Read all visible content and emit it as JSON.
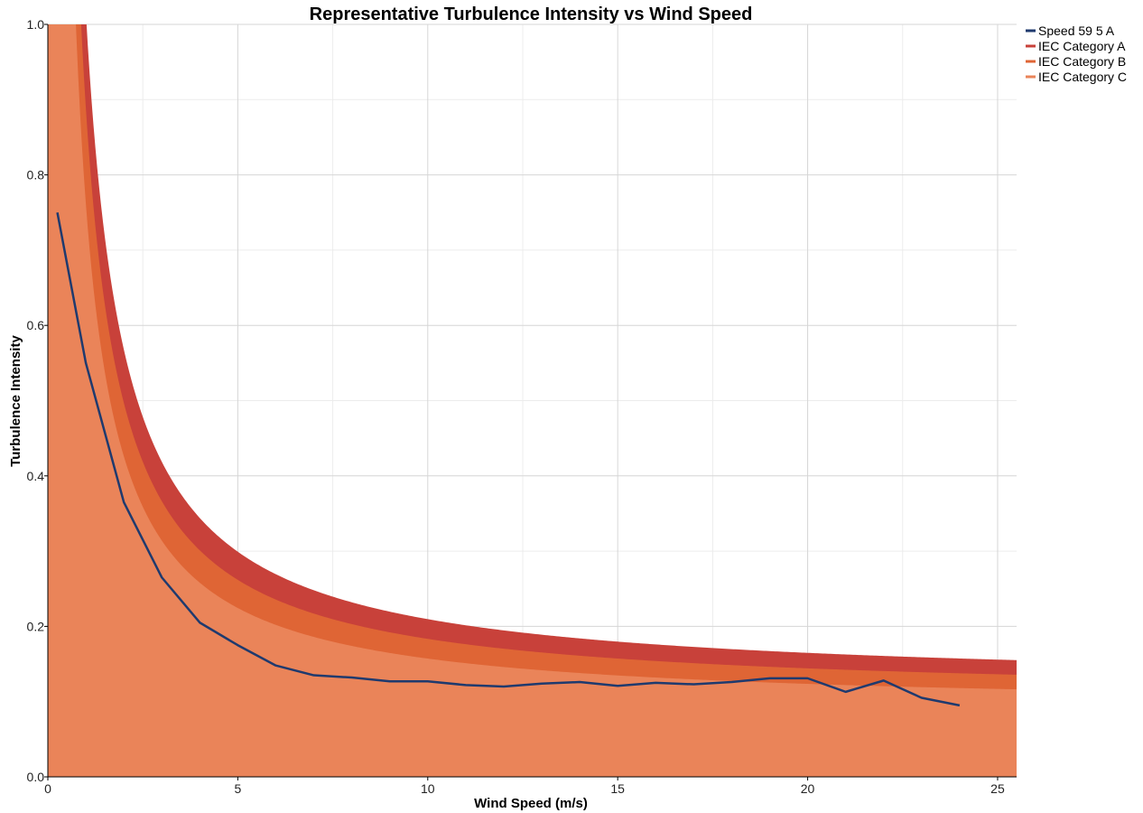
{
  "chart_data": {
    "type": "line",
    "title": "Representative Turbulence Intensity vs Wind Speed",
    "xlabel": "Wind Speed (m/s)",
    "ylabel": "Turbulence Intensity",
    "xlim": [
      0,
      25.5
    ],
    "ylim": [
      0,
      1.0
    ],
    "x_ticks": [
      0,
      5,
      10,
      15,
      20,
      25
    ],
    "x_tick_labels": [
      "0",
      "5",
      "10",
      "15",
      "20",
      "25"
    ],
    "y_ticks": [
      0.0,
      0.2,
      0.4,
      0.6,
      0.8,
      1.0
    ],
    "y_tick_labels": [
      "0.0",
      "0.2",
      "0.4",
      "0.6",
      "0.8",
      "1.0"
    ],
    "grid": true,
    "legend_position": "top-right",
    "series": [
      {
        "name": "Speed 59 5 A",
        "kind": "line",
        "color": "#1f3a6e",
        "x": [
          0.25,
          1,
          2,
          3,
          4,
          5,
          6,
          7,
          8,
          9,
          10,
          11,
          12,
          13,
          14,
          15,
          16,
          17,
          18,
          19,
          20,
          21,
          22,
          23,
          24
        ],
        "y": [
          0.75,
          0.55,
          0.365,
          0.265,
          0.205,
          0.175,
          0.148,
          0.135,
          0.132,
          0.127,
          0.127,
          0.122,
          0.12,
          0.124,
          0.126,
          0.121,
          0.125,
          0.123,
          0.126,
          0.131,
          0.131,
          0.113,
          0.128,
          0.105,
          0.095
        ]
      },
      {
        "name": "IEC Category A",
        "kind": "area",
        "color": "#c8413a",
        "iref": 0.16
      },
      {
        "name": "IEC Category B",
        "kind": "area",
        "color": "#df6535",
        "iref": 0.14
      },
      {
        "name": "IEC Category C",
        "kind": "area",
        "color": "#ea8459",
        "iref": 0.12
      }
    ]
  }
}
